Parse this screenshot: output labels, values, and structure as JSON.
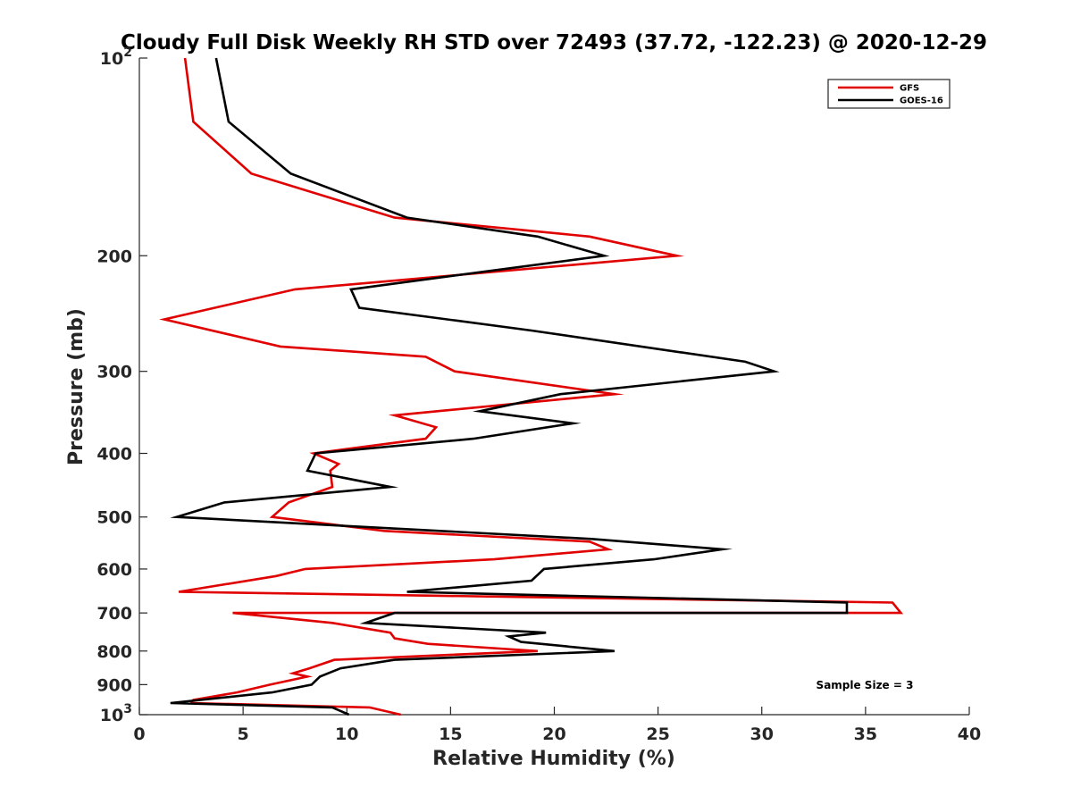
{
  "chart_data": {
    "type": "line",
    "title": "Cloudy Full Disk Weekly RH STD over 72493 (37.72, -122.23) @ 2020-12-29",
    "xlabel": "Relative Humidity (%)",
    "ylabel": "Pressure (mb)",
    "xlim": [
      0,
      40
    ],
    "ylim": [
      100,
      1000
    ],
    "yscale": "log",
    "y_reversed": true,
    "x_ticks": [
      0,
      5,
      10,
      15,
      20,
      25,
      30,
      35,
      40
    ],
    "x_tick_labels": [
      "0",
      "5",
      "10",
      "15",
      "20",
      "25",
      "30",
      "35",
      "40"
    ],
    "y_ticks": [
      100,
      200,
      300,
      400,
      500,
      600,
      700,
      800,
      900,
      1000
    ],
    "y_tick_labels": [
      {
        "base": "10",
        "exp": "2"
      },
      {
        "base": "200",
        "exp": ""
      },
      {
        "base": "300",
        "exp": ""
      },
      {
        "base": "400",
        "exp": ""
      },
      {
        "base": "500",
        "exp": ""
      },
      {
        "base": "600",
        "exp": ""
      },
      {
        "base": "700",
        "exp": ""
      },
      {
        "base": "800",
        "exp": ""
      },
      {
        "base": "900",
        "exp": ""
      },
      {
        "base": "10",
        "exp": "3"
      }
    ],
    "grid": false,
    "legend_position": "top-right",
    "annotation": "Sample Size = 3",
    "series": [
      {
        "name": "GFS",
        "color": "#e00000",
        "points": [
          [
            2.2,
            100
          ],
          [
            2.6,
            125
          ],
          [
            5.4,
            150
          ],
          [
            12.3,
            175
          ],
          [
            21.7,
            187
          ],
          [
            25.9,
            200
          ],
          [
            7.5,
            225
          ],
          [
            1.2,
            250
          ],
          [
            6.8,
            275
          ],
          [
            13.8,
            285
          ],
          [
            15.2,
            300
          ],
          [
            22.9,
            325
          ],
          [
            12.3,
            350
          ],
          [
            14.3,
            365
          ],
          [
            13.8,
            380
          ],
          [
            8.4,
            400
          ],
          [
            9.6,
            415
          ],
          [
            9.2,
            425
          ],
          [
            9.3,
            450
          ],
          [
            7.2,
            475
          ],
          [
            6.4,
            500
          ],
          [
            11.8,
            525
          ],
          [
            21.7,
            545
          ],
          [
            22.6,
            560
          ],
          [
            17.1,
            580
          ],
          [
            8.0,
            600
          ],
          [
            6.6,
            615
          ],
          [
            1.9,
            650
          ],
          [
            36.3,
            675
          ],
          [
            36.7,
            700
          ],
          [
            4.5,
            700
          ],
          [
            9.3,
            725
          ],
          [
            12.1,
            750
          ],
          [
            12.3,
            765
          ],
          [
            13.9,
            780
          ],
          [
            19.2,
            800
          ],
          [
            9.4,
            825
          ],
          [
            8.2,
            850
          ],
          [
            7.4,
            865
          ],
          [
            8.1,
            875
          ],
          [
            6.3,
            900
          ],
          [
            4.7,
            925
          ],
          [
            2.6,
            950
          ],
          [
            2.5,
            960
          ],
          [
            11.1,
            975
          ],
          [
            12.6,
            1000
          ]
        ]
      },
      {
        "name": "GOES-16",
        "color": "#000000",
        "points": [
          [
            3.7,
            100
          ],
          [
            4.3,
            125
          ],
          [
            7.3,
            150
          ],
          [
            12.9,
            175
          ],
          [
            19.2,
            187
          ],
          [
            22.4,
            200
          ],
          [
            10.2,
            225
          ],
          [
            10.6,
            240
          ],
          [
            18.9,
            260
          ],
          [
            29.2,
            290
          ],
          [
            30.6,
            300
          ],
          [
            20.3,
            325
          ],
          [
            16.4,
            345
          ],
          [
            20.9,
            360
          ],
          [
            16.1,
            380
          ],
          [
            8.5,
            400
          ],
          [
            8.1,
            425
          ],
          [
            12.1,
            450
          ],
          [
            4.1,
            475
          ],
          [
            1.8,
            500
          ],
          [
            21.8,
            540
          ],
          [
            28.1,
            560
          ],
          [
            24.8,
            580
          ],
          [
            19.5,
            600
          ],
          [
            18.9,
            625
          ],
          [
            12.9,
            650
          ],
          [
            34.1,
            675
          ],
          [
            34.1,
            700
          ],
          [
            12.3,
            700
          ],
          [
            10.9,
            725
          ],
          [
            19.6,
            750
          ],
          [
            17.8,
            760
          ],
          [
            18.4,
            775
          ],
          [
            22.9,
            800
          ],
          [
            12.3,
            825
          ],
          [
            9.7,
            850
          ],
          [
            9.1,
            865
          ],
          [
            8.7,
            875
          ],
          [
            8.3,
            900
          ],
          [
            6.4,
            925
          ],
          [
            1.5,
            960
          ],
          [
            9.3,
            975
          ],
          [
            10.1,
            1000
          ]
        ]
      }
    ]
  }
}
